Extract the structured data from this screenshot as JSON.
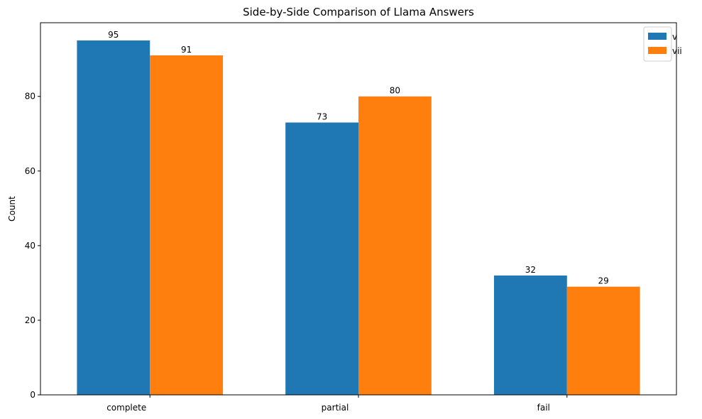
{
  "chart_data": {
    "type": "bar",
    "title": "Side-by-Side Comparison of Llama Answers",
    "xlabel": "",
    "ylabel": "Count",
    "categories": [
      "complete",
      "partial",
      "fail"
    ],
    "series": [
      {
        "name": "v",
        "values": [
          95,
          73,
          32
        ],
        "color": "#1f77b4"
      },
      {
        "name": "vii",
        "values": [
          91,
          80,
          29
        ],
        "color": "#ff7f0e"
      }
    ],
    "ylim": [
      0,
      99.75
    ],
    "yticks": [
      0,
      20,
      40,
      60,
      80
    ],
    "legend": "top-right",
    "grid": false
  }
}
